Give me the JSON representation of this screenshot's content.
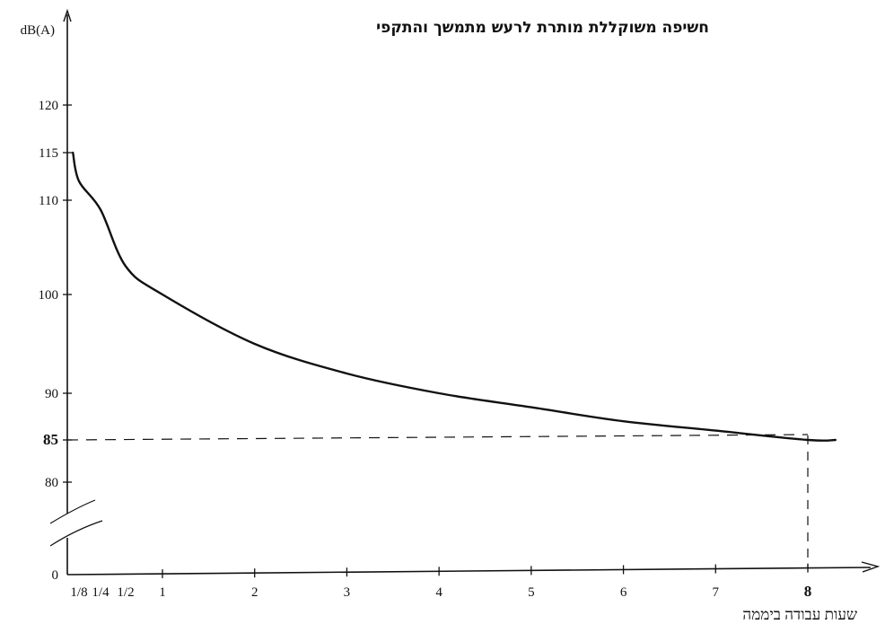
{
  "chart_data": {
    "type": "line",
    "title": "חשיפה משוקללת מותרת לרעש מתמשך והתקפי",
    "ylabel": "dB(A)",
    "xlabel": "שעות עבודה ביממה",
    "y_ticks": [
      {
        "value": 0,
        "label": "0"
      },
      {
        "value": 80,
        "label": "80"
      },
      {
        "value": 85,
        "label": "85",
        "bold": true
      },
      {
        "value": 90,
        "label": "90"
      },
      {
        "value": 100,
        "label": "100"
      },
      {
        "value": 110,
        "label": "110"
      },
      {
        "value": 115,
        "label": "115"
      },
      {
        "value": 120,
        "label": "120"
      }
    ],
    "x_ticks": [
      {
        "value": 0.125,
        "label": "1/8"
      },
      {
        "value": 0.25,
        "label": "1/4"
      },
      {
        "value": 0.5,
        "label": "1/2"
      },
      {
        "value": 1,
        "label": "1"
      },
      {
        "value": 2,
        "label": "2"
      },
      {
        "value": 3,
        "label": "3"
      },
      {
        "value": 4,
        "label": "4"
      },
      {
        "value": 5,
        "label": "5"
      },
      {
        "value": 6,
        "label": "6"
      },
      {
        "value": 7,
        "label": "7"
      },
      {
        "value": 8,
        "label": "8",
        "bold": true
      }
    ],
    "series": [
      {
        "x": [
          0.06,
          0.125,
          0.25,
          0.5,
          1,
          2,
          3,
          4,
          5,
          6,
          7,
          8,
          8.3
        ],
        "y": [
          115,
          112,
          109,
          103,
          100,
          95,
          92,
          90,
          88.5,
          87,
          86,
          85,
          85
        ]
      }
    ],
    "reference_lines": [
      {
        "axis": "y",
        "value": 85,
        "style": "dashed"
      },
      {
        "axis": "x",
        "value": 8,
        "style": "dashed"
      }
    ],
    "y_axis_break": true,
    "grid": false,
    "colors": {
      "line": "#111111",
      "text": "#111111",
      "background": "#ffffff"
    }
  }
}
